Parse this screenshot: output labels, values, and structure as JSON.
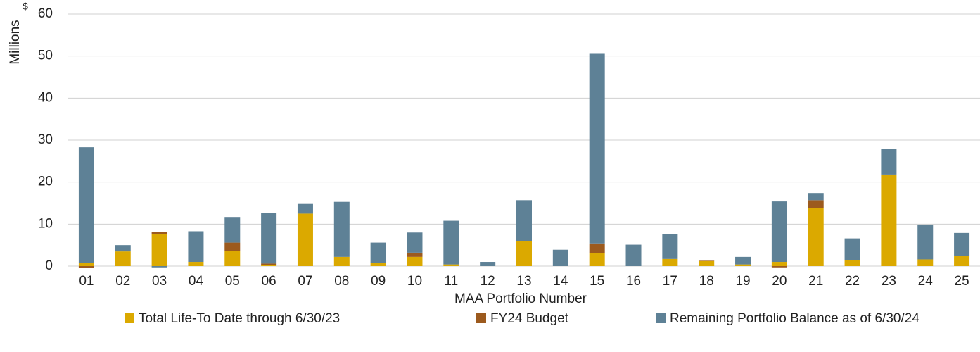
{
  "chart_data": {
    "type": "stacked_bar",
    "y_label": "Millions",
    "y_unit": "$",
    "x_label": "MAA Portfolio Number",
    "categories": [
      "01",
      "02",
      "03",
      "04",
      "05",
      "06",
      "07",
      "08",
      "09",
      "10",
      "11",
      "12",
      "13",
      "14",
      "15",
      "16",
      "17",
      "18",
      "19",
      "20",
      "21",
      "22",
      "23",
      "24",
      "25"
    ],
    "series": [
      {
        "name": "Total Life-To Date through 6/30/23",
        "color": "#dba900",
        "values": [
          0.7,
          3.5,
          7.7,
          1.0,
          3.6,
          0.3,
          12.5,
          2.2,
          0.7,
          2.2,
          0.4,
          0,
          6.0,
          0,
          3.1,
          0,
          1.7,
          1.2,
          0.4,
          1.0,
          13.8,
          1.5,
          21.8,
          1.6,
          2.4
        ]
      },
      {
        "name": "FY24 Budget",
        "color": "#9c5a1e",
        "values": [
          -0.4,
          0,
          0.5,
          0,
          2.0,
          0.3,
          0,
          0,
          0,
          1.0,
          0,
          0,
          0,
          0,
          2.3,
          0,
          0,
          0.1,
          0,
          -0.3,
          1.9,
          0,
          0,
          0,
          0
        ]
      },
      {
        "name": "Remaining Portfolio Balance as of 6/30/24",
        "color": "#5e8196",
        "values": [
          27.6,
          1.5,
          -0.3,
          7.3,
          6.1,
          12.1,
          2.3,
          13.1,
          4.9,
          4.8,
          10.4,
          1.0,
          9.7,
          3.9,
          45.3,
          5.1,
          6.0,
          0,
          1.8,
          14.4,
          1.7,
          5.1,
          6.1,
          8.3,
          5.5
        ]
      }
    ],
    "ylim": [
      0,
      60
    ],
    "yticks": [
      0,
      10,
      20,
      30,
      40,
      50,
      60
    ],
    "grid": true,
    "legend": "bottom"
  }
}
